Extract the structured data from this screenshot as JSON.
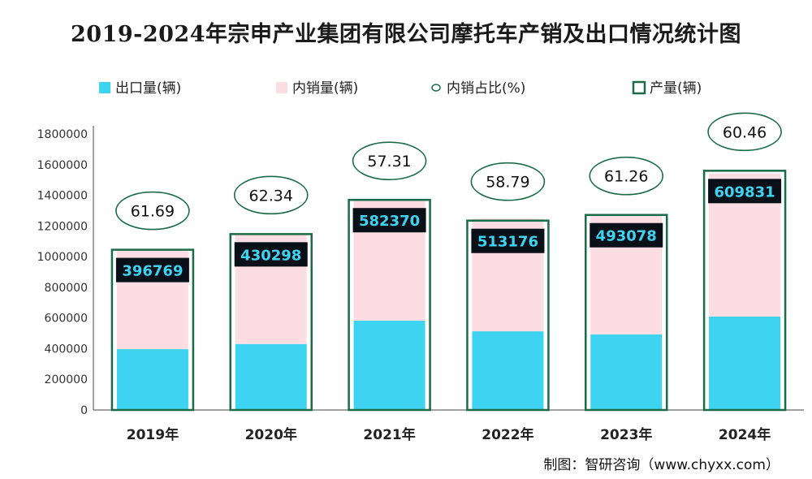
{
  "chart_data": {
    "type": "bar",
    "title": "2019-2024年宗申产业集团有限公司摩托车产销及出口情况统计图",
    "source": "制图：智研咨询（www.chyxx.com）",
    "categories": [
      "2019年",
      "2020年",
      "2021年",
      "2022年",
      "2023年",
      "2024年"
    ],
    "ylim": [
      0,
      1800000
    ],
    "yticks": [
      "0",
      "200000",
      "400000",
      "600000",
      "800000",
      "1000000",
      "1200000",
      "1400000",
      "1600000",
      "1800000"
    ],
    "grid": false,
    "legend_position": "top",
    "series": [
      {
        "name": "出口量(辆)",
        "kind": "stacked-bar",
        "color": "#3fd3f2",
        "values": [
          396769,
          430298,
          582370,
          513176,
          493078,
          609831
        ],
        "labels_shown": true
      },
      {
        "name": "内销量(辆)",
        "kind": "stacked-bar",
        "color": "#fbdde3",
        "values": [
          641620,
          714096,
          781690,
          734276,
          779115,
          932484
        ],
        "labels_shown": false
      },
      {
        "name": "内销占比(%)",
        "kind": "ellipse-label",
        "color": "#1a6b47",
        "values": [
          61.69,
          62.34,
          57.31,
          58.79,
          61.26,
          60.46
        ],
        "labels_shown": true
      },
      {
        "name": "产量(辆)",
        "kind": "outline-bar",
        "color": "#1a6b47",
        "values": [
          1045000,
          1147000,
          1370000,
          1235000,
          1272000,
          1560000
        ],
        "labels_shown": false
      }
    ]
  }
}
